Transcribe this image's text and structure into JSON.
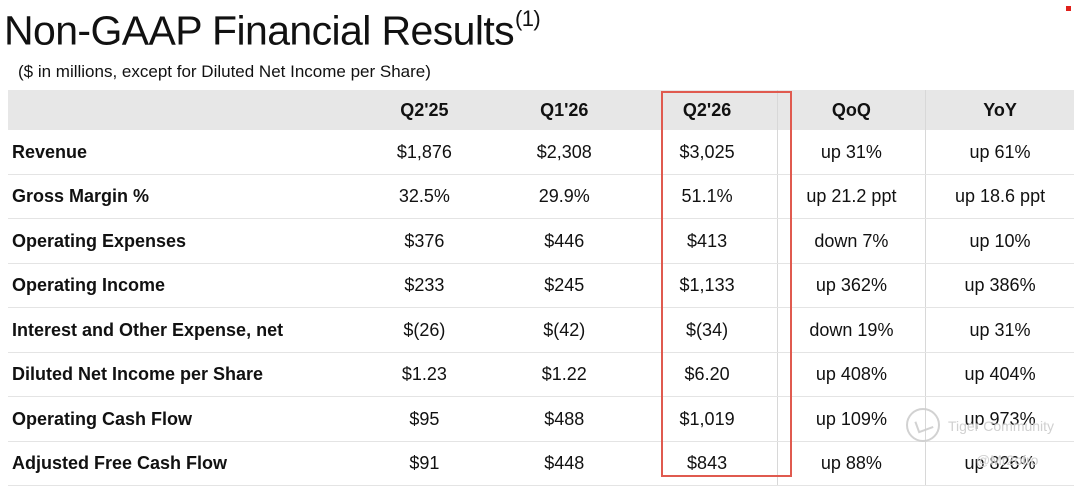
{
  "header": {
    "title": "Non-GAAP Financial Results",
    "title_superscript": "(1)",
    "subtitle": "($ in millions, except for Diluted Net Income per Share)"
  },
  "colors": {
    "header_band": "#e7e7e7",
    "highlight_box": "#e05a4f",
    "corner_mark": "#e0201b"
  },
  "table": {
    "columns": [
      "",
      "Q2'25",
      "Q1'26",
      "Q2'26",
      "QoQ",
      "YoY"
    ],
    "highlighted_column": "Q2'26",
    "rows": [
      {
        "label": "Revenue",
        "q2_25": "$1,876",
        "q1_26": "$2,308",
        "q2_26": "$3,025",
        "qoq": "up 31%",
        "yoy": "up 61%"
      },
      {
        "label": "Gross Margin %",
        "q2_25": "32.5%",
        "q1_26": "29.9%",
        "q2_26": "51.1%",
        "qoq": "up 21.2 ppt",
        "yoy": "up 18.6 ppt"
      },
      {
        "label": "Operating Expenses",
        "q2_25": "$376",
        "q1_26": "$446",
        "q2_26": "$413",
        "qoq": "down 7%",
        "yoy": "up 10%"
      },
      {
        "label": "Operating Income",
        "q2_25": "$233",
        "q1_26": "$245",
        "q2_26": "$1,133",
        "qoq": "up 362%",
        "yoy": "up 386%"
      },
      {
        "label": "Interest and Other Expense, net",
        "q2_25": "$(26)",
        "q1_26": "$(42)",
        "q2_26": "$(34)",
        "qoq": "down 19%",
        "yoy": "up 31%"
      },
      {
        "label": "Diluted Net Income per Share",
        "q2_25": "$1.23",
        "q1_26": "$1.22",
        "q2_26": "$6.20",
        "qoq": "up 408%",
        "yoy": "up 404%"
      },
      {
        "label": "Operating Cash Flow",
        "q2_25": "$95",
        "q1_26": "$488",
        "q2_26": "$1,019",
        "qoq": "up 109%",
        "yoy": "up 973%"
      },
      {
        "label": "Adjusted Free Cash Flow",
        "q2_25": "$91",
        "q1_26": "$448",
        "q2_26": "$843",
        "qoq": "up 88%",
        "yoy": "up 826%"
      }
    ]
  },
  "watermark": {
    "brand": "Tiger Community",
    "user": "@Mr2ofro"
  }
}
